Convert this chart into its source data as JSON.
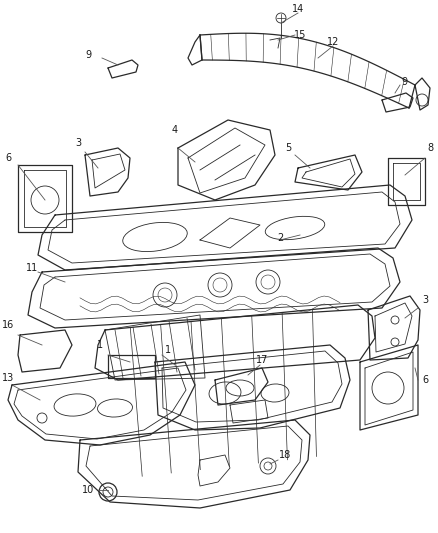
{
  "bg_color": "#ffffff",
  "line_color": "#2a2a2a",
  "label_color": "#1a1a1a",
  "fig_width": 4.39,
  "fig_height": 5.33,
  "dpi": 100
}
